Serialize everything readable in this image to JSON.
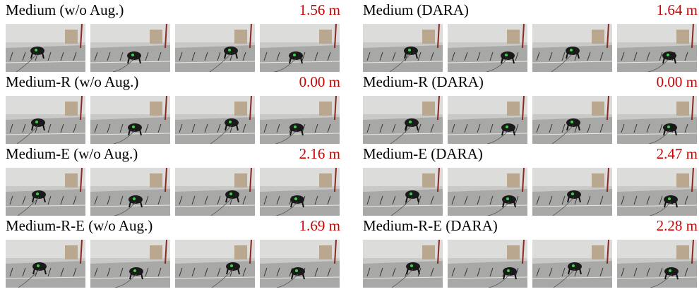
{
  "panels": [
    {
      "label": "Medium (w/o Aug.)",
      "distance": "1.56 m"
    },
    {
      "label": "Medium (DARA)",
      "distance": "1.64 m"
    },
    {
      "label": "Medium-R (w/o Aug.)",
      "distance": "0.00 m"
    },
    {
      "label": "Medium-R (DARA)",
      "distance": "0.00 m"
    },
    {
      "label": "Medium-E (w/o Aug.)",
      "distance": "2.16 m"
    },
    {
      "label": "Medium-E (DARA)",
      "distance": "2.47 m"
    },
    {
      "label": "Medium-R-E (w/o Aug.)",
      "distance": "1.69 m"
    },
    {
      "label": "Medium-R-E (DARA)",
      "distance": "2.28 m"
    }
  ]
}
